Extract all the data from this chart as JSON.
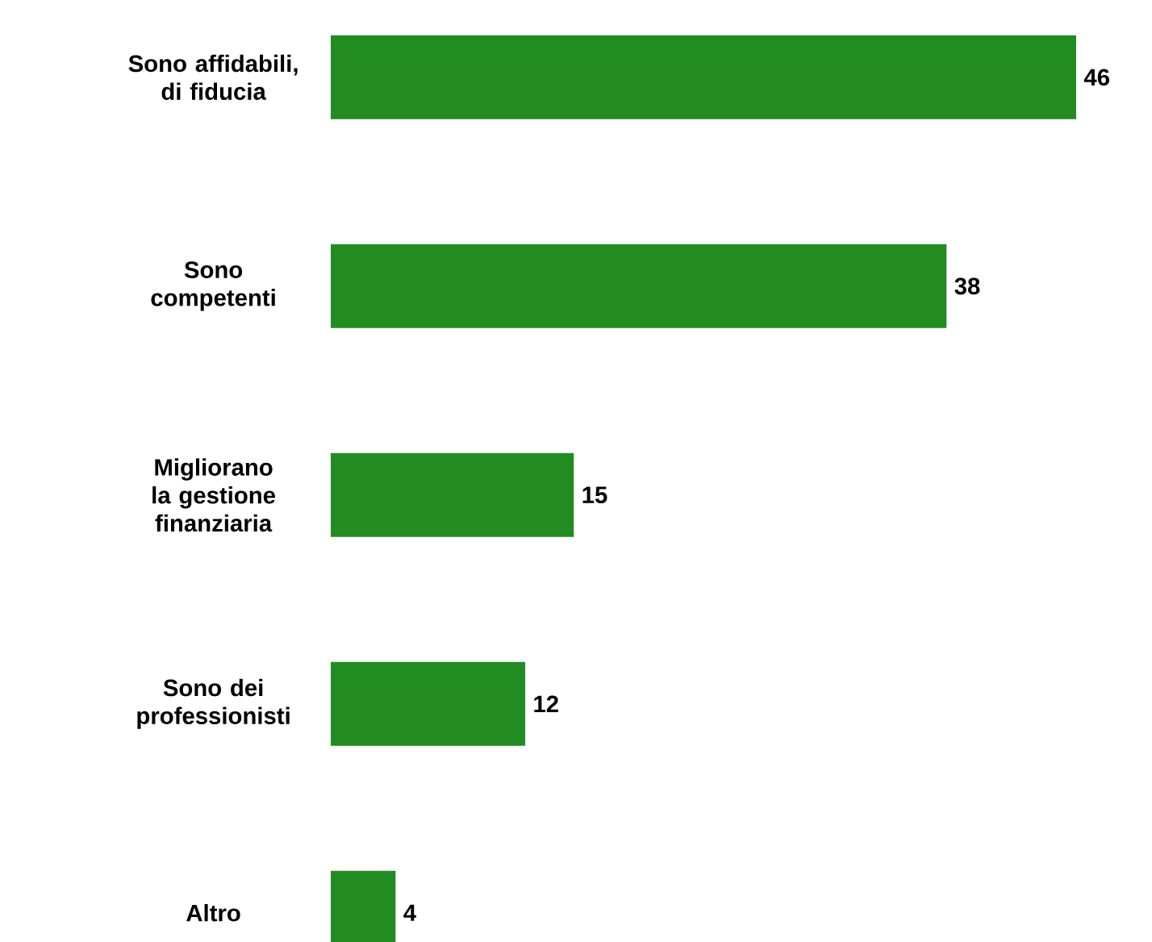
{
  "chart_data": {
    "type": "bar",
    "orientation": "horizontal",
    "categories": [
      "Sono affidabili, di fiducia",
      "Sono competenti",
      "Migliorano la gestione finanziaria",
      "Sono dei professionisti",
      "Altro"
    ],
    "values": [
      46,
      38,
      15,
      12,
      4
    ],
    "color": "#228b22",
    "data_labels": true
  }
}
